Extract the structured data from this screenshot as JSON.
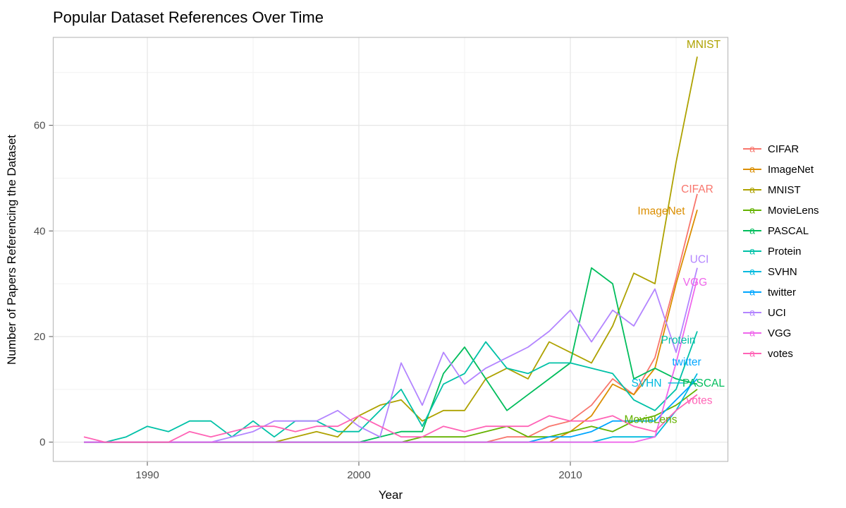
{
  "title": "Popular Dataset References Over Time",
  "axes": {
    "x_label": "Year",
    "y_label": "Number of Papers Referencing the Dataset",
    "x_range": [
      1985.55,
      2017.45
    ],
    "y_range": [
      -3.65,
      76.65
    ],
    "x_ticks": [
      1990,
      2000,
      2010
    ],
    "x_minor": [
      1995,
      2005,
      2015
    ],
    "y_ticks": [
      0,
      20,
      40,
      60
    ],
    "y_minor": [
      10,
      30,
      50,
      70
    ],
    "grid": "on",
    "tick_color": "#4d4d4d",
    "panel_border_color": "#bdbdbd",
    "grid_major_color": "#e6e6e6",
    "grid_minor_color": "#f2f2f2"
  },
  "chart_data": {
    "type": "line",
    "title": "Popular Dataset References Over Time",
    "xlabel": "Year",
    "ylabel": "Number of Papers Referencing the Dataset",
    "x": [
      1987,
      1988,
      1989,
      1990,
      1991,
      1992,
      1993,
      1994,
      1995,
      1996,
      1997,
      1998,
      1999,
      2000,
      2001,
      2002,
      2003,
      2004,
      2005,
      2006,
      2007,
      2008,
      2009,
      2010,
      2011,
      2012,
      2013,
      2014,
      2015,
      2016
    ],
    "series": [
      {
        "name": "CIFAR",
        "color": "#F8766D",
        "values": [
          0,
          0,
          0,
          0,
          0,
          0,
          0,
          0,
          0,
          0,
          0,
          0,
          0,
          0,
          0,
          0,
          0,
          0,
          0,
          0,
          1,
          1,
          3,
          4,
          7,
          12,
          9,
          16,
          31,
          47
        ]
      },
      {
        "name": "ImageNet",
        "color": "#DB8E00",
        "values": [
          0,
          0,
          0,
          0,
          0,
          0,
          0,
          0,
          0,
          0,
          0,
          0,
          0,
          0,
          0,
          0,
          0,
          0,
          0,
          0,
          0,
          0,
          0,
          2,
          5,
          11,
          9,
          14,
          30,
          44
        ]
      },
      {
        "name": "MNIST",
        "color": "#AEA200",
        "values": [
          0,
          0,
          0,
          0,
          0,
          0,
          0,
          0,
          0,
          0,
          1,
          2,
          1,
          5,
          7,
          8,
          4,
          6,
          6,
          12,
          14,
          12,
          19,
          17,
          15,
          22,
          32,
          30,
          53,
          73
        ]
      },
      {
        "name": "MovieLens",
        "color": "#64B200",
        "values": [
          0,
          0,
          0,
          0,
          0,
          0,
          0,
          0,
          0,
          0,
          0,
          0,
          0,
          0,
          0,
          0,
          1,
          1,
          1,
          2,
          3,
          1,
          1,
          2,
          3,
          2,
          4,
          5,
          7,
          10
        ]
      },
      {
        "name": "PASCAL",
        "color": "#00BD5C",
        "values": [
          0,
          0,
          0,
          0,
          0,
          0,
          0,
          0,
          0,
          0,
          0,
          0,
          0,
          0,
          1,
          2,
          2,
          13,
          18,
          12,
          6,
          9,
          12,
          15,
          33,
          30,
          12,
          14,
          12,
          11
        ]
      },
      {
        "name": "Protein",
        "color": "#00C1A7",
        "values": [
          0,
          0,
          1,
          3,
          2,
          4,
          4,
          1,
          4,
          1,
          4,
          4,
          2,
          2,
          6,
          10,
          3,
          11,
          13,
          19,
          14,
          13,
          15,
          15,
          14,
          13,
          8,
          6,
          10,
          21
        ]
      },
      {
        "name": "SVHN",
        "color": "#00BADE",
        "values": [
          0,
          0,
          0,
          0,
          0,
          0,
          0,
          0,
          0,
          0,
          0,
          0,
          0,
          0,
          0,
          0,
          0,
          0,
          0,
          0,
          0,
          0,
          0,
          0,
          0,
          1,
          1,
          1,
          6,
          13
        ]
      },
      {
        "name": "twitter",
        "color": "#00A6FF",
        "values": [
          0,
          0,
          0,
          0,
          0,
          0,
          0,
          0,
          0,
          0,
          0,
          0,
          0,
          0,
          0,
          0,
          0,
          0,
          0,
          0,
          0,
          0,
          1,
          1,
          2,
          4,
          4,
          4,
          8,
          12
        ]
      },
      {
        "name": "UCI",
        "color": "#B385FF",
        "values": [
          0,
          0,
          0,
          0,
          0,
          0,
          0,
          1,
          2,
          4,
          4,
          4,
          6,
          3,
          1,
          15,
          7,
          17,
          11,
          14,
          16,
          18,
          21,
          25,
          19,
          25,
          22,
          29,
          17,
          33
        ]
      },
      {
        "name": "VGG",
        "color": "#EF67EB",
        "values": [
          0,
          0,
          0,
          0,
          0,
          0,
          0,
          0,
          0,
          0,
          0,
          0,
          0,
          0,
          0,
          0,
          0,
          0,
          0,
          0,
          0,
          0,
          0,
          0,
          0,
          0,
          0,
          1,
          15,
          31
        ]
      },
      {
        "name": "votes",
        "color": "#FF63B6",
        "values": [
          1,
          0,
          0,
          0,
          0,
          2,
          1,
          2,
          3,
          3,
          2,
          3,
          3,
          5,
          3,
          1,
          1,
          3,
          2,
          3,
          3,
          3,
          5,
          4,
          4,
          5,
          3,
          2,
          6,
          9
        ]
      }
    ],
    "direct_labels": [
      {
        "text": "MNIST",
        "series": "MNIST",
        "x": 2016.3,
        "y": 75.3
      },
      {
        "text": "CIFAR",
        "series": "CIFAR",
        "x": 2016.0,
        "y": 47.9
      },
      {
        "text": "ImageNet",
        "series": "ImageNet",
        "x": 2014.3,
        "y": 43.8
      },
      {
        "text": "UCI",
        "series": "UCI",
        "x": 2016.1,
        "y": 34.6
      },
      {
        "text": "VGG",
        "series": "VGG",
        "x": 2015.9,
        "y": 30.3
      },
      {
        "text": "Protein",
        "series": "Protein",
        "x": 2015.1,
        "y": 19.3
      },
      {
        "text": "twitter",
        "series": "twitter",
        "x": 2015.5,
        "y": 15.2
      },
      {
        "text": "SVHN",
        "series": "SVHN",
        "x": 2013.6,
        "y": 11.2
      },
      {
        "text": "PASCAL",
        "series": "PASCAL",
        "x": 2016.3,
        "y": 11.2
      },
      {
        "text": "votes",
        "series": "votes",
        "x": 2016.1,
        "y": 7.9
      },
      {
        "text": "MovieLens",
        "series": "MovieLens",
        "x": 2013.8,
        "y": 4.3
      }
    ],
    "leader_lines": [
      {
        "series": "SVHN",
        "x1": 2014.62,
        "y1": 11.2,
        "x2": 2015.42,
        "y2": 11.2
      }
    ],
    "legend_position": "right"
  },
  "legend": {
    "key_glyph": "a",
    "items": [
      {
        "label": "CIFAR",
        "color": "#F8766D"
      },
      {
        "label": "ImageNet",
        "color": "#DB8E00"
      },
      {
        "label": "MNIST",
        "color": "#AEA200"
      },
      {
        "label": "MovieLens",
        "color": "#64B200"
      },
      {
        "label": "PASCAL",
        "color": "#00BD5C"
      },
      {
        "label": "Protein",
        "color": "#00C1A7"
      },
      {
        "label": "SVHN",
        "color": "#00BADE"
      },
      {
        "label": "twitter",
        "color": "#00A6FF"
      },
      {
        "label": "UCI",
        "color": "#B385FF"
      },
      {
        "label": "VGG",
        "color": "#EF67EB"
      },
      {
        "label": "votes",
        "color": "#FF63B6"
      }
    ]
  }
}
